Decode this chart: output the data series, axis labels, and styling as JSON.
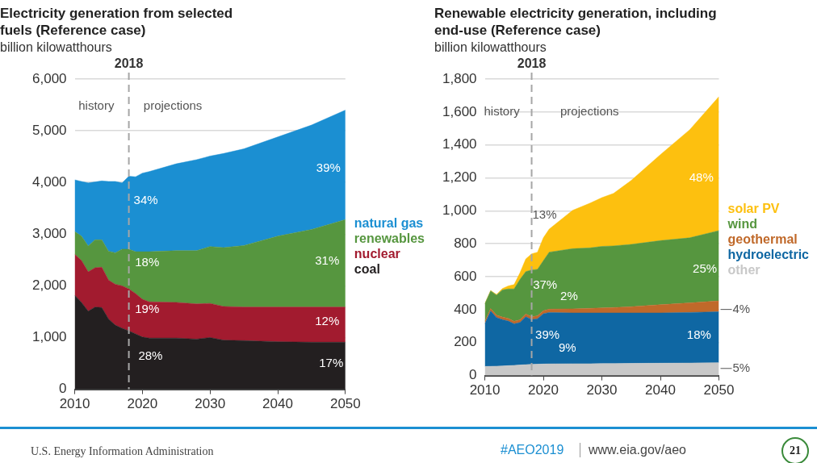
{
  "chart_data": [
    {
      "type": "area",
      "stacked": true,
      "title": "Electricity generation from selected fuels (Reference case)",
      "ylabel": "billion kilowatthours",
      "x": [
        2010,
        2011,
        2012,
        2013,
        2014,
        2015,
        2016,
        2017,
        2018,
        2019,
        2020,
        2021,
        2025,
        2028,
        2030,
        2032,
        2035,
        2040,
        2045,
        2050
      ],
      "series": [
        {
          "name": "coal",
          "color": "#231f20",
          "values": [
            1820,
            1680,
            1510,
            1590,
            1580,
            1360,
            1240,
            1180,
            1130,
            1070,
            1010,
            990,
            990,
            970,
            1000,
            950,
            940,
            920,
            910,
            910
          ]
        },
        {
          "name": "nuclear",
          "color": "#a21b2f",
          "values": [
            790,
            810,
            760,
            760,
            780,
            750,
            790,
            820,
            810,
            780,
            730,
            700,
            690,
            680,
            660,
            650,
            650,
            670,
            680,
            680
          ]
        },
        {
          "name": "renewables",
          "color": "#56963f",
          "values": [
            440,
            470,
            500,
            540,
            530,
            560,
            610,
            710,
            770,
            810,
            920,
            970,
            1000,
            1030,
            1100,
            1140,
            1190,
            1370,
            1500,
            1690
          ]
        },
        {
          "name": "natural gas",
          "color": "#1b8fd2",
          "values": [
            1000,
            1060,
            1220,
            1120,
            1140,
            1350,
            1380,
            1280,
            1410,
            1450,
            1520,
            1550,
            1680,
            1760,
            1750,
            1820,
            1870,
            1920,
            2020,
            2120
          ]
        }
      ],
      "xlim": [
        2010,
        2050
      ],
      "xticks": [
        2010,
        2020,
        2030,
        2040,
        2050
      ],
      "ylim": [
        0,
        6000
      ],
      "yticks": [
        0,
        {
          "value": 1000,
          "label": "1,000"
        },
        {
          "value": 2000,
          "label": "2,000"
        },
        {
          "value": 3000,
          "label": "3,000"
        },
        {
          "value": 4000,
          "label": "4,000"
        },
        {
          "value": 5000,
          "label": "5,000"
        },
        {
          "value": 6000,
          "label": "6,000"
        }
      ],
      "grid": "y",
      "legend": "right",
      "ref_lines": [
        {
          "axis": "x",
          "value": 2018,
          "label": "2018",
          "color": "#a6a6a6",
          "line_style": "dashed"
        }
      ],
      "annotations": [
        "history",
        "projections",
        "34%",
        "18%",
        "19%",
        "28%",
        "39%",
        "31%",
        "12%",
        "17%"
      ]
    },
    {
      "type": "area",
      "stacked": true,
      "title": "Renewable electricity generation, including end-use (Reference case)",
      "ylabel": "billion kilowatthours",
      "x": [
        2010,
        2011,
        2012,
        2013,
        2014,
        2015,
        2016,
        2017,
        2018,
        2019,
        2020,
        2021,
        2025,
        2028,
        2030,
        2032,
        2035,
        2040,
        2045,
        2050
      ],
      "series": [
        {
          "name": "other",
          "color": "#c8c8c8",
          "values": [
            55,
            56,
            57,
            58,
            60,
            62,
            64,
            66,
            68,
            69,
            70,
            71,
            72,
            72,
            73,
            73,
            74,
            75,
            76,
            78
          ]
        },
        {
          "name": "hydroelectric",
          "color": "#0f67a3",
          "values": [
            259,
            336,
            295,
            282,
            271,
            252,
            258,
            291,
            272,
            276,
            305,
            312,
            308,
            308,
            307,
            307,
            306,
            305,
            307,
            309
          ]
        },
        {
          "name": "geothermal",
          "color": "#c0692a",
          "values": [
            15,
            15,
            15,
            15,
            16,
            16,
            16,
            17,
            17,
            18,
            19,
            20,
            25,
            28,
            30,
            33,
            38,
            50,
            58,
            66
          ]
        },
        {
          "name": "wind",
          "color": "#56963f",
          "values": [
            106,
            107,
            121,
            164,
            179,
            196,
            245,
            257,
            284,
            282,
            303,
            346,
            365,
            367,
            374,
            374,
            378,
            389,
            395,
            427
          ]
        },
        {
          "name": "solar PV",
          "color": "#fdc00f",
          "values": [
            1,
            2,
            4,
            9,
            18,
            26,
            40,
            77,
            98,
            104,
            139,
            140,
            233,
            272,
            296,
            319,
            388,
            522,
            656,
            813
          ]
        }
      ],
      "xlim": [
        2010,
        2050
      ],
      "xticks": [
        2010,
        2020,
        2030,
        2040,
        2050
      ],
      "ylim": [
        0,
        1800
      ],
      "yticks": [
        0,
        200,
        400,
        600,
        800,
        {
          "value": 1000,
          "label": "1,000"
        },
        {
          "value": 1200,
          "label": "1,200"
        },
        {
          "value": 1400,
          "label": "1,400"
        },
        {
          "value": 1600,
          "label": "1,600"
        },
        {
          "value": 1800,
          "label": "1,800"
        }
      ],
      "grid": "y",
      "legend": "right",
      "ref_lines": [
        {
          "axis": "x",
          "value": 2018,
          "label": "2018",
          "color": "#a6a6a6",
          "line_style": "dashed"
        }
      ],
      "annotations": [
        "history",
        "projections",
        "13%",
        "37%",
        "2%",
        "39%",
        "9%",
        "48%",
        "25%",
        "18%",
        "4%",
        "5%",
        "U.S. Energy Information Administration",
        "#AEO2019",
        "www.eia.gov/aeo",
        "21"
      ]
    }
  ]
}
